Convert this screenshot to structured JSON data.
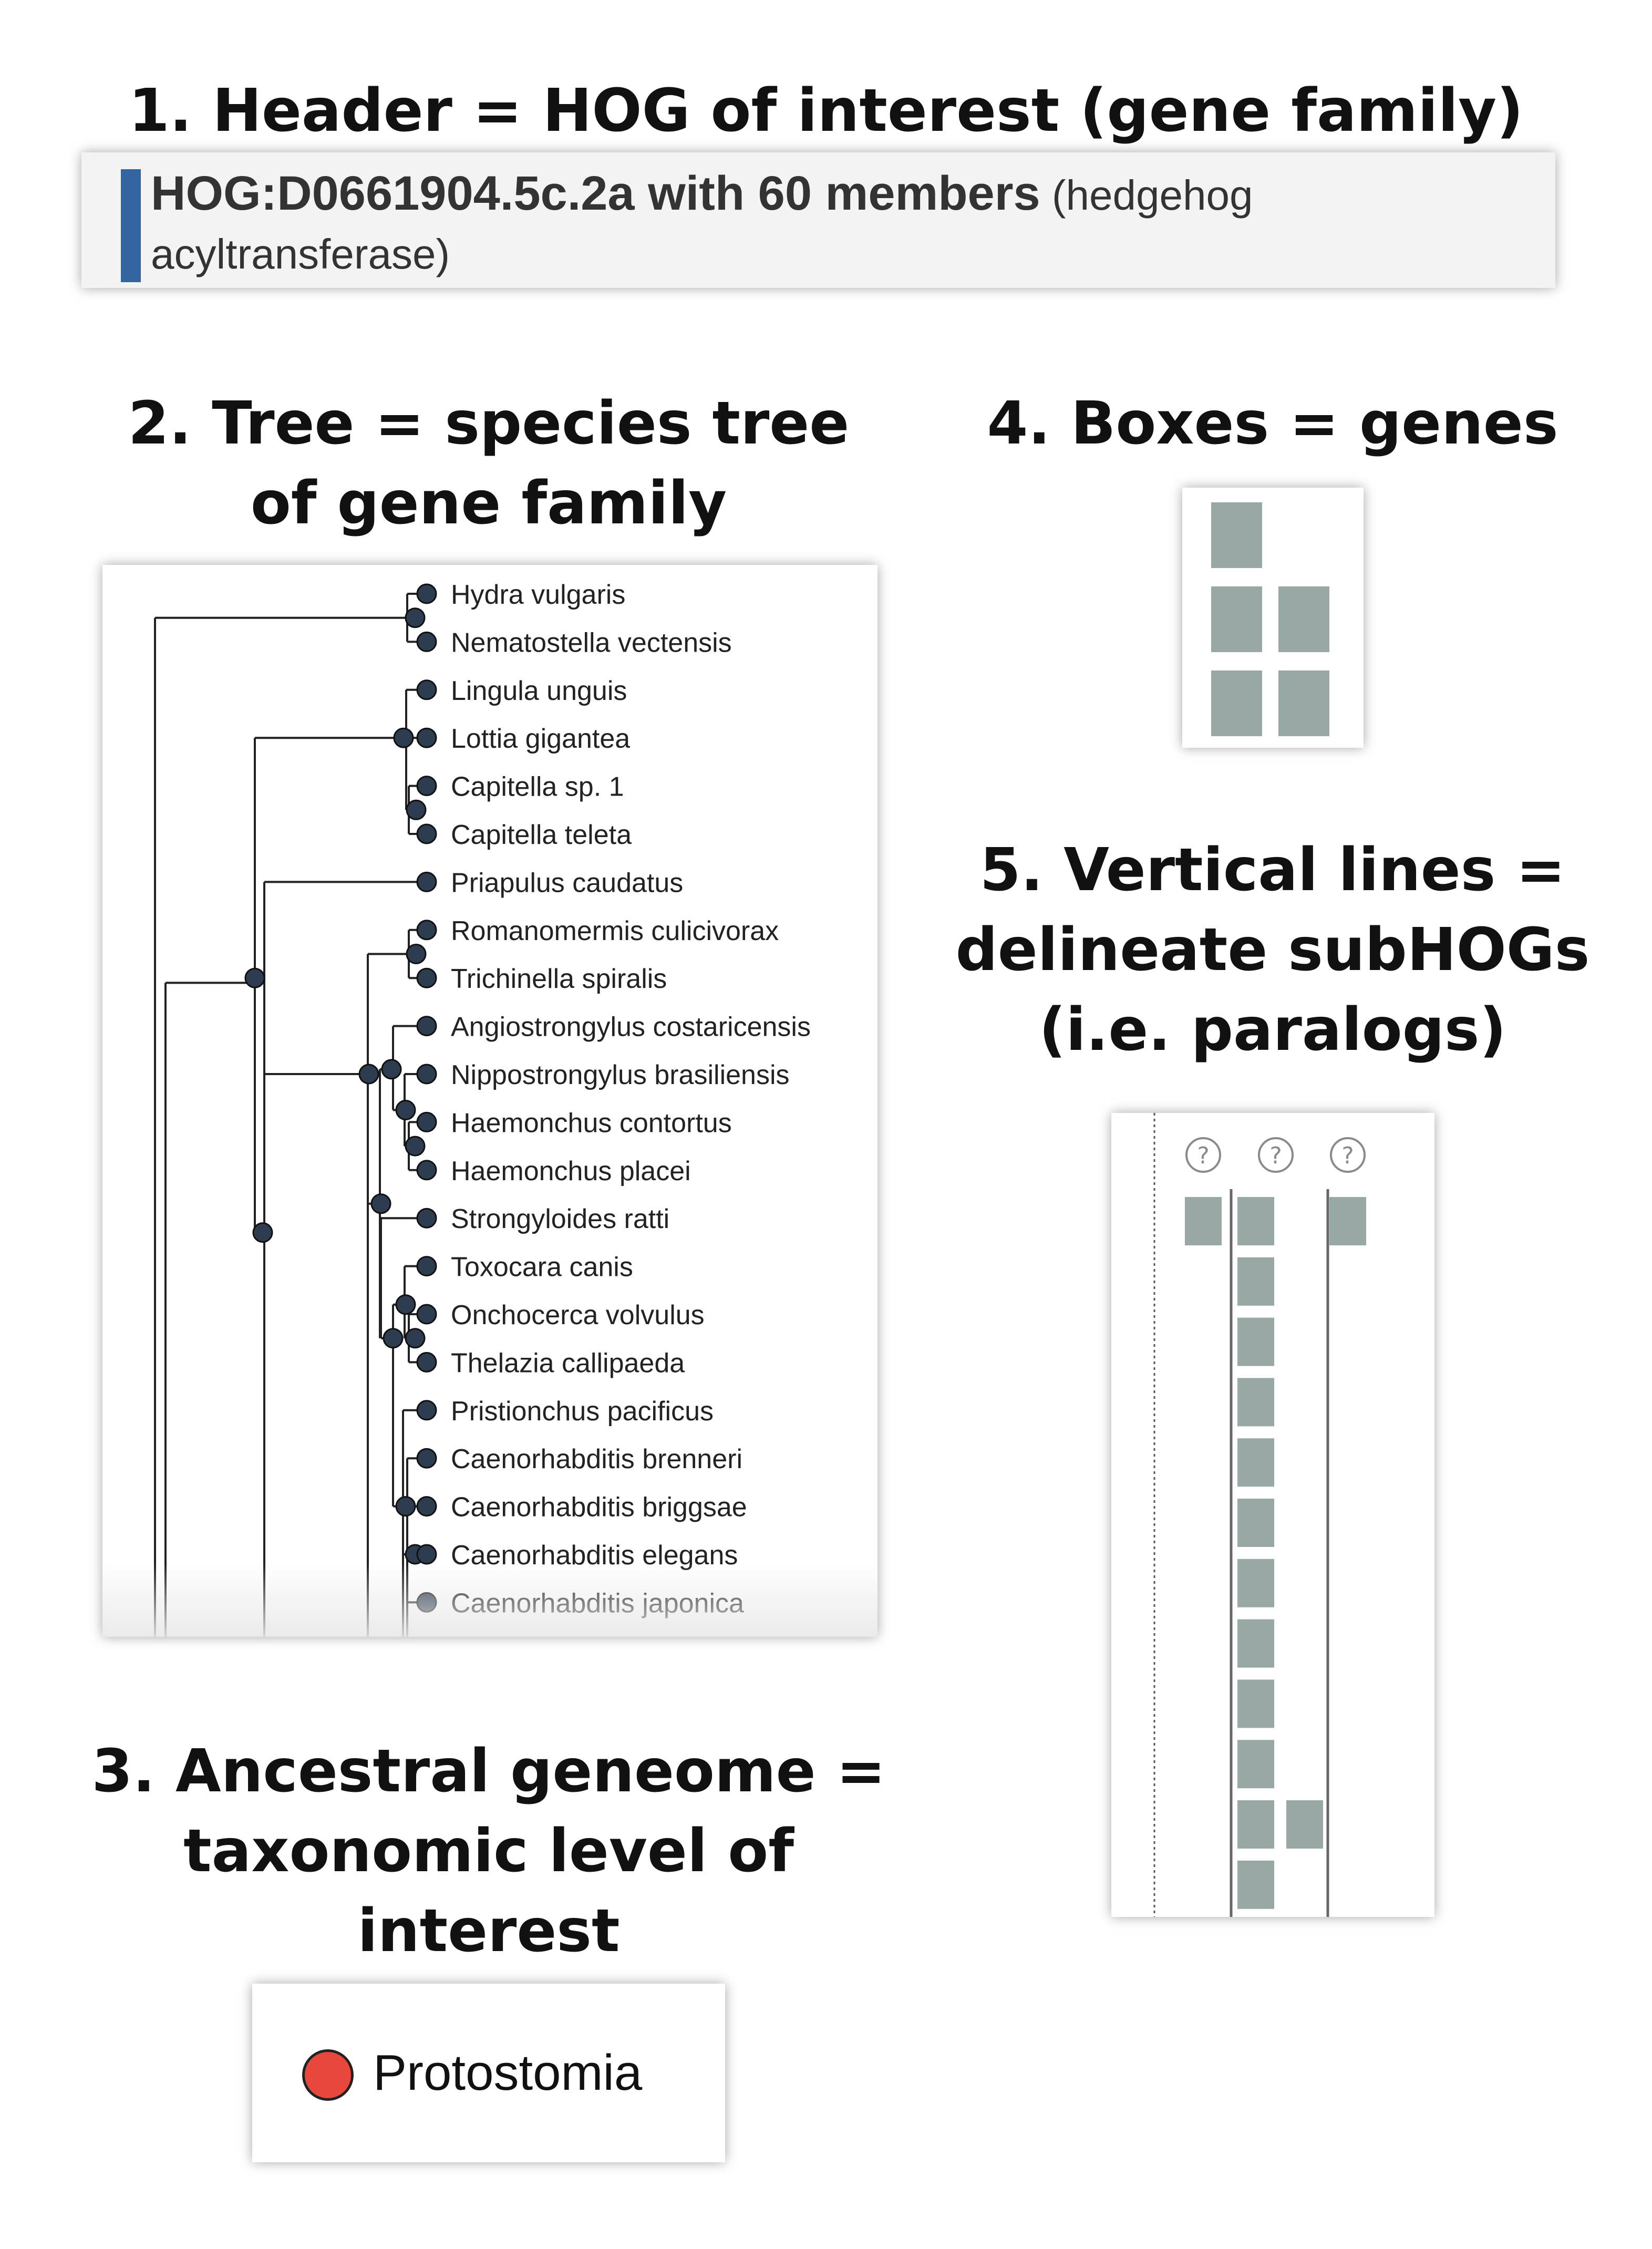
{
  "titles": {
    "header": "1. Header = HOG of interest (gene family)",
    "tree_line1": "2. Tree = species tree",
    "tree_line2": "of gene family",
    "ancestral_line1": "3. Ancestral geneome =",
    "ancestral_line2": "taxonomic level of",
    "ancestral_line3": "interest",
    "boxes": "4. Boxes = genes",
    "vlines_line1": "5. Vertical lines =",
    "vlines_line2": "delineate subHOGs",
    "vlines_line3": "(i.e. paralogs)"
  },
  "header": {
    "hog_id": "HOG:D0661904.5c.2a with 60 members",
    "description_part1": "(hedgehog",
    "description_part2": "acyltransferase)",
    "accent_color": "#3465a0"
  },
  "species_tree": {
    "species": [
      "Hydra vulgaris",
      "Nematostella vectensis",
      "Lingula unguis",
      "Lottia gigantea",
      "Capitella sp. 1",
      "Capitella teleta",
      "Priapulus caudatus",
      "Romanomermis culicivorax",
      "Trichinella spiralis",
      "Angiostrongylus costaricensis",
      "Nippostrongylus brasiliensis",
      "Haemonchus contortus",
      "Haemonchus placei",
      "Strongyloides ratti",
      "Toxocara canis",
      "Onchocerca volvulus",
      "Thelazia callipaeda",
      "Pristionchus pacificus",
      "Caenorhabditis brenneri",
      "Caenorhabditis briggsae",
      "Caenorhabditis elegans",
      "Caenorhabditis japonica"
    ],
    "node_color": "#2d3c4e"
  },
  "ancestral_genome": {
    "level": "Protostomia",
    "dot_color": "#e8483b"
  },
  "gene_box_color": "#98a8a4",
  "subhogs": {
    "question_mark": "?",
    "column_count": 3
  }
}
